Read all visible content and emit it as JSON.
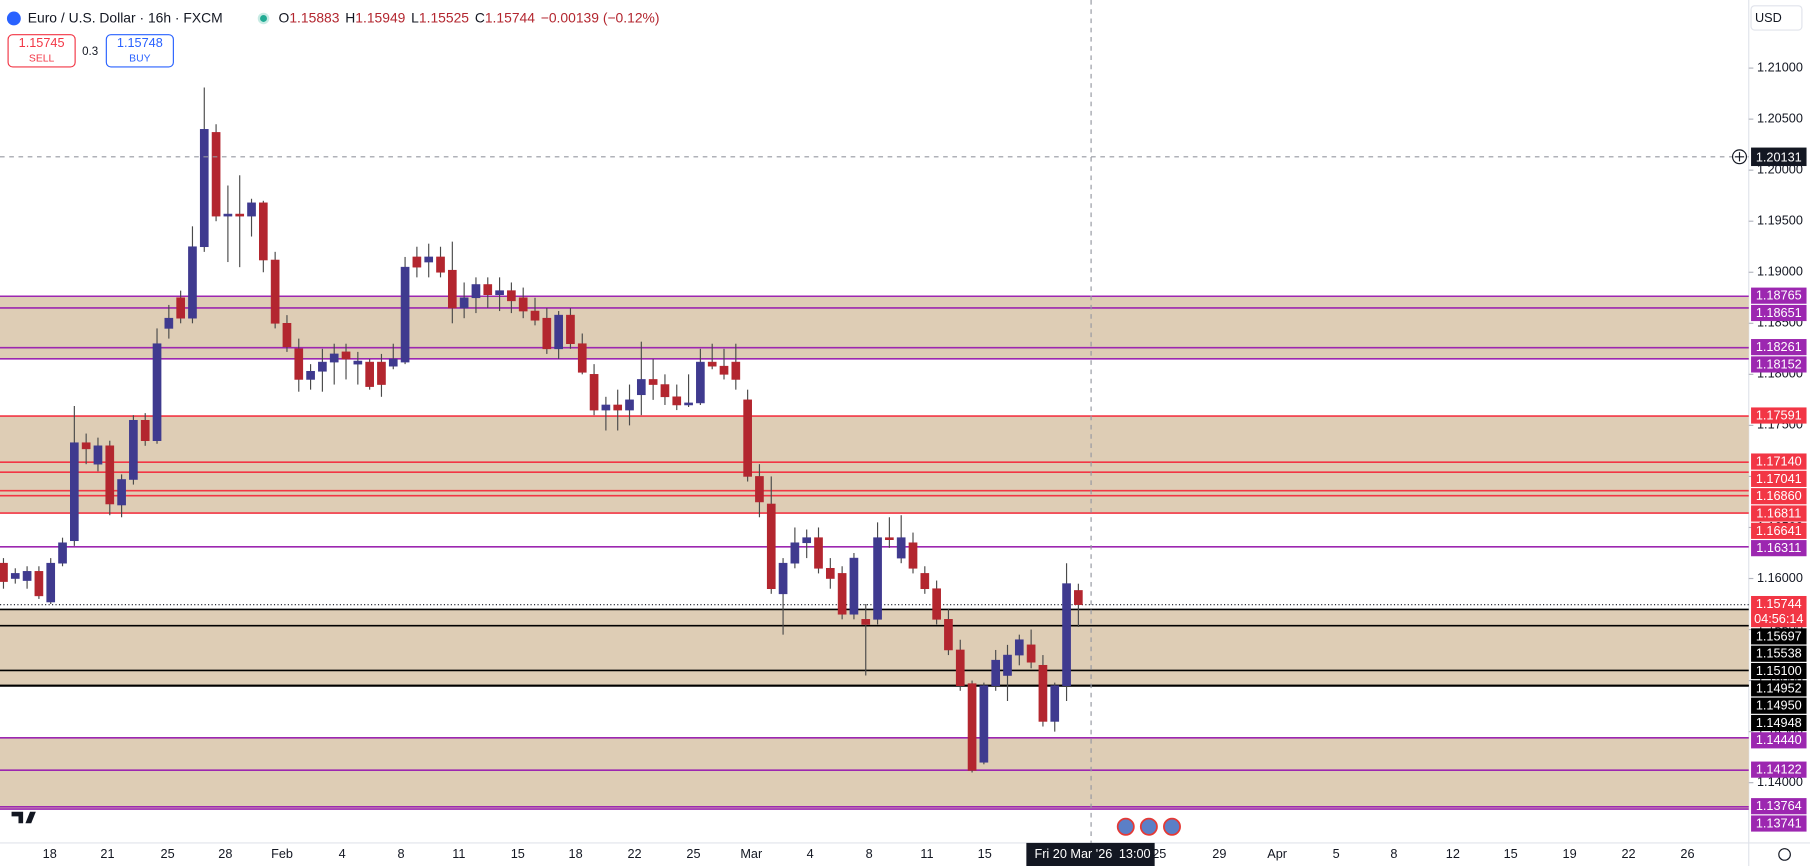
{
  "chart_data": {
    "type": "candlestick",
    "title": "Euro / U.S. Dollar · 16h · FXCM",
    "ohlc_labels": [
      "O",
      "H",
      "L",
      "C"
    ],
    "ohlc_values": [
      1.15883,
      1.15949,
      1.15525,
      1.15744
    ],
    "change": "−0.00139 (−0.12%)",
    "sell_price": 1.15745,
    "sell_label": "SELL",
    "buy_price": 1.15748,
    "buy_label": "BUY",
    "spread": 0.3,
    "currency": "USD",
    "up_color": "#3f3a8f",
    "down_color": "#b3262f",
    "zone_color": "#dccab1",
    "open": [
      1.1615,
      1.16,
      1.1598,
      1.1607,
      1.1577,
      1.1615,
      1.1637,
      1.1733,
      1.1712,
      1.173,
      1.1672,
      1.1697,
      1.1755,
      1.1735,
      1.1845,
      1.1875,
      1.1855,
      1.1925,
      1.2037,
      1.1955,
      1.1957,
      1.1955,
      1.1968,
      1.1912,
      1.185,
      1.1825,
      1.1795,
      1.1803,
      1.1812,
      1.1822,
      1.181,
      1.1812,
      1.1812,
      1.1808,
      1.1812,
      1.1915,
      1.191,
      1.1915,
      1.1902,
      1.1865,
      1.1875,
      1.1888,
      1.1878,
      1.1882,
      1.1875,
      1.1862,
      1.1855,
      1.1825,
      1.1858,
      1.183,
      1.18,
      1.1765,
      1.177,
      1.1765,
      1.178,
      1.1795,
      1.179,
      1.1778,
      1.177,
      1.1772,
      1.1812,
      1.1808,
      1.1812,
      1.1775,
      1.17,
      1.1673,
      1.1585,
      1.1615,
      1.1635,
      1.164,
      1.161,
      1.1605,
      1.1565,
      1.156,
      1.156,
      1.164,
      1.162,
      1.1635,
      1.1605,
      1.159,
      1.156,
      1.153,
      1.1497,
      1.142,
      1.1495,
      1.1505,
      1.1525,
      1.1535,
      1.1515,
      1.146,
      1.1495,
      1.15883
    ],
    "high": [
      1.162,
      1.161,
      1.1612,
      1.1612,
      1.162,
      1.164,
      1.1769,
      1.1742,
      1.1738,
      1.1735,
      1.1702,
      1.176,
      1.1762,
      1.1845,
      1.1868,
      1.1882,
      1.1945,
      1.2081,
      1.2045,
      1.1985,
      1.1995,
      1.1972,
      1.197,
      1.192,
      1.1858,
      1.1835,
      1.181,
      1.1825,
      1.183,
      1.183,
      1.1822,
      1.1815,
      1.182,
      1.183,
      1.1915,
      1.1925,
      1.1928,
      1.1925,
      1.193,
      1.189,
      1.1895,
      1.1895,
      1.1895,
      1.189,
      1.1885,
      1.1875,
      1.1865,
      1.1862,
      1.1865,
      1.184,
      1.181,
      1.1778,
      1.1785,
      1.179,
      1.1832,
      1.1815,
      1.18,
      1.179,
      1.18,
      1.1825,
      1.183,
      1.1825,
      1.183,
      1.1785,
      1.1712,
      1.17,
      1.162,
      1.165,
      1.1648,
      1.165,
      1.162,
      1.1612,
      1.1625,
      1.1575,
      1.1655,
      1.166,
      1.1662,
      1.1645,
      1.1612,
      1.1598,
      1.157,
      1.154,
      1.15,
      1.1498,
      1.153,
      1.1535,
      1.1545,
      1.155,
      1.1525,
      1.1498,
      1.1615,
      1.15949
    ],
    "low": [
      1.159,
      1.1595,
      1.159,
      1.158,
      1.1575,
      1.1612,
      1.1632,
      1.1712,
      1.1705,
      1.1662,
      1.166,
      1.1692,
      1.173,
      1.1732,
      1.1835,
      1.185,
      1.185,
      1.192,
      1.195,
      1.191,
      1.1905,
      1.1935,
      1.19,
      1.1845,
      1.1822,
      1.1783,
      1.1785,
      1.1783,
      1.179,
      1.1795,
      1.179,
      1.1785,
      1.1778,
      1.1805,
      1.181,
      1.1895,
      1.1895,
      1.1895,
      1.185,
      1.1855,
      1.186,
      1.1865,
      1.1862,
      1.186,
      1.1855,
      1.1848,
      1.182,
      1.1815,
      1.1825,
      1.18,
      1.176,
      1.1745,
      1.1745,
      1.175,
      1.176,
      1.1775,
      1.177,
      1.1765,
      1.1768,
      1.177,
      1.1805,
      1.1795,
      1.1785,
      1.1695,
      1.166,
      1.1585,
      1.1545,
      1.161,
      1.162,
      1.1605,
      1.159,
      1.156,
      1.156,
      1.1505,
      1.1555,
      1.163,
      1.1615,
      1.1605,
      1.1585,
      1.1555,
      1.1525,
      1.149,
      1.141,
      1.1418,
      1.149,
      1.148,
      1.1515,
      1.1512,
      1.1455,
      1.145,
      1.148,
      1.15525
    ],
    "close": [
      1.1597,
      1.1605,
      1.1607,
      1.1583,
      1.1615,
      1.1635,
      1.1733,
      1.1727,
      1.173,
      1.1673,
      1.1697,
      1.1755,
      1.1735,
      1.183,
      1.1855,
      1.1855,
      1.1925,
      1.204,
      1.1955,
      1.1957,
      1.1955,
      1.1968,
      1.1912,
      1.185,
      1.1827,
      1.1795,
      1.1803,
      1.1812,
      1.182,
      1.1815,
      1.1813,
      1.1788,
      1.179,
      1.1815,
      1.1905,
      1.1905,
      1.1915,
      1.19,
      1.1865,
      1.1875,
      1.1888,
      1.1878,
      1.1882,
      1.1872,
      1.1862,
      1.1853,
      1.1825,
      1.1858,
      1.183,
      1.1802,
      1.1765,
      1.177,
      1.1765,
      1.1775,
      1.1795,
      1.179,
      1.1778,
      1.177,
      1.1772,
      1.1812,
      1.1808,
      1.18,
      1.1795,
      1.17,
      1.1675,
      1.159,
      1.1615,
      1.1635,
      1.164,
      1.161,
      1.16,
      1.1565,
      1.162,
      1.1555,
      1.164,
      1.1638,
      1.164,
      1.161,
      1.159,
      1.156,
      1.153,
      1.1495,
      1.1412,
      1.1495,
      1.152,
      1.1525,
      1.154,
      1.1518,
      1.146,
      1.1495,
      1.1595,
      1.15744
    ],
    "ylim": [
      1.1341,
      1.21667
    ],
    "yticks": [
      {
        "value": 1.21,
        "label": "1.21000"
      },
      {
        "value": 1.205,
        "label": "1.20500"
      },
      {
        "value": 1.2,
        "label": "1.20000"
      },
      {
        "value": 1.195,
        "label": "1.19500"
      },
      {
        "value": 1.19,
        "label": "1.19000"
      },
      {
        "value": 1.185,
        "label": "1.18500"
      },
      {
        "value": 1.18,
        "label": "1.18000"
      },
      {
        "value": 1.175,
        "label": "1.17500"
      },
      {
        "value": 1.17,
        "label": "1.17000"
      },
      {
        "value": 1.165,
        "label": "1.16500"
      },
      {
        "value": 1.16,
        "label": "1.16000"
      },
      {
        "value": 1.155,
        "label": "1.15500"
      },
      {
        "value": 1.15,
        "label": "1.15000"
      },
      {
        "value": 1.145,
        "label": "1.14500"
      },
      {
        "value": 1.14,
        "label": "1.14000"
      }
    ],
    "x_labels": [
      "18",
      "21",
      "25",
      "28",
      "Feb",
      "4",
      "8",
      "11",
      "15",
      "18",
      "22",
      "25",
      "Mar",
      "4",
      "8",
      "11",
      "15",
      "25",
      "29",
      "Apr",
      "5",
      "8",
      "12",
      "15",
      "19",
      "22",
      "26"
    ],
    "zones": [
      [
        1.18765,
        1.18152
      ],
      [
        1.17591,
        1.16641
      ],
      [
        1.15697,
        1.14948
      ],
      [
        1.1444,
        1.13741
      ]
    ],
    "levels": [
      {
        "value": 1.18765,
        "color": "#9c27b0"
      },
      {
        "value": 1.18651,
        "color": "#9c27b0"
      },
      {
        "value": 1.18261,
        "color": "#9c27b0"
      },
      {
        "value": 1.18152,
        "color": "#9c27b0"
      },
      {
        "value": 1.17591,
        "color": "#f23645"
      },
      {
        "value": 1.1714,
        "label": "1.17140",
        "color": "#f23645"
      },
      {
        "value": 1.17041,
        "color": "#f23645"
      },
      {
        "value": 1.1686,
        "label": "1.16860",
        "color": "#f23645"
      },
      {
        "value": 1.16811,
        "color": "#f23645"
      },
      {
        "value": 1.16641,
        "color": "#f23645"
      },
      {
        "value": 1.16311,
        "color": "#9c27b0"
      },
      {
        "value": 1.15697,
        "color": "#000000"
      },
      {
        "value": 1.15538,
        "color": "#000000"
      },
      {
        "value": 1.151,
        "label": "1.15100",
        "color": "#000000"
      },
      {
        "value": 1.14952,
        "color": "#000000"
      },
      {
        "value": 1.1495,
        "label": "1.14950",
        "color": "#000000"
      },
      {
        "value": 1.14948,
        "color": "#000000"
      },
      {
        "value": 1.1444,
        "label": "1.14440",
        "color": "#9c27b0"
      },
      {
        "value": 1.14122,
        "color": "#9c27b0"
      },
      {
        "value": 1.13764,
        "color": "#9c27b0"
      },
      {
        "value": 1.13741,
        "color": "#9c27b0"
      }
    ],
    "last_price": 1.15744,
    "last_color": "#f23645",
    "countdown": "04:56:14",
    "crosshair_price": 1.20131,
    "crosshair_date": "Fri 20 Mar '26",
    "crosshair_time": "13:00"
  }
}
